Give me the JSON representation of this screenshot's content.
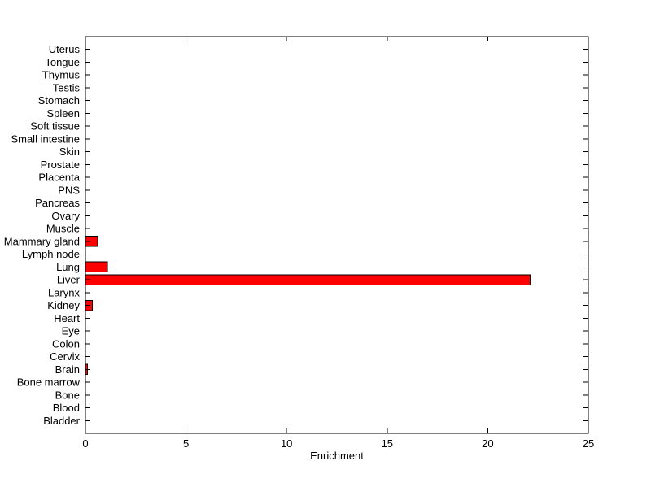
{
  "figure": {
    "background_color": "#ffffff",
    "axis_color": "#000000",
    "text_color": "#000000",
    "bar_fill_color": "#ff0000",
    "bar_edge_color": "#000000"
  },
  "chart_data": {
    "type": "bar",
    "orientation": "horizontal",
    "title": "",
    "xlabel": "Enrichment",
    "ylabel": "",
    "xlim": [
      0,
      25
    ],
    "xticks": [
      0,
      5,
      10,
      15,
      20,
      25
    ],
    "xtick_labels": [
      "0",
      "5",
      "10",
      "15",
      "20",
      "25"
    ],
    "grid": false,
    "legend": null,
    "categories_top_to_bottom": [
      "Uterus",
      "Tongue",
      "Thymus",
      "Testis",
      "Stomach",
      "Spleen",
      "Soft tissue",
      "Small intestine",
      "Skin",
      "Prostate",
      "Placenta",
      "PNS",
      "Pancreas",
      "Ovary",
      "Muscle",
      "Mammary gland",
      "Lymph node",
      "Lung",
      "Liver",
      "Larynx",
      "Kidney",
      "Heart",
      "Eye",
      "Colon",
      "Cervix",
      "Brain",
      "Bone marrow",
      "Bone",
      "Blood",
      "Bladder"
    ],
    "values_top_to_bottom": [
      0,
      0,
      0,
      0,
      0,
      0,
      0,
      0,
      0,
      0,
      0,
      0,
      0,
      0,
      0,
      0.6,
      0,
      1.1,
      22.1,
      0,
      0.35,
      0,
      0,
      0,
      0,
      0.1,
      0,
      0,
      0,
      0
    ]
  }
}
